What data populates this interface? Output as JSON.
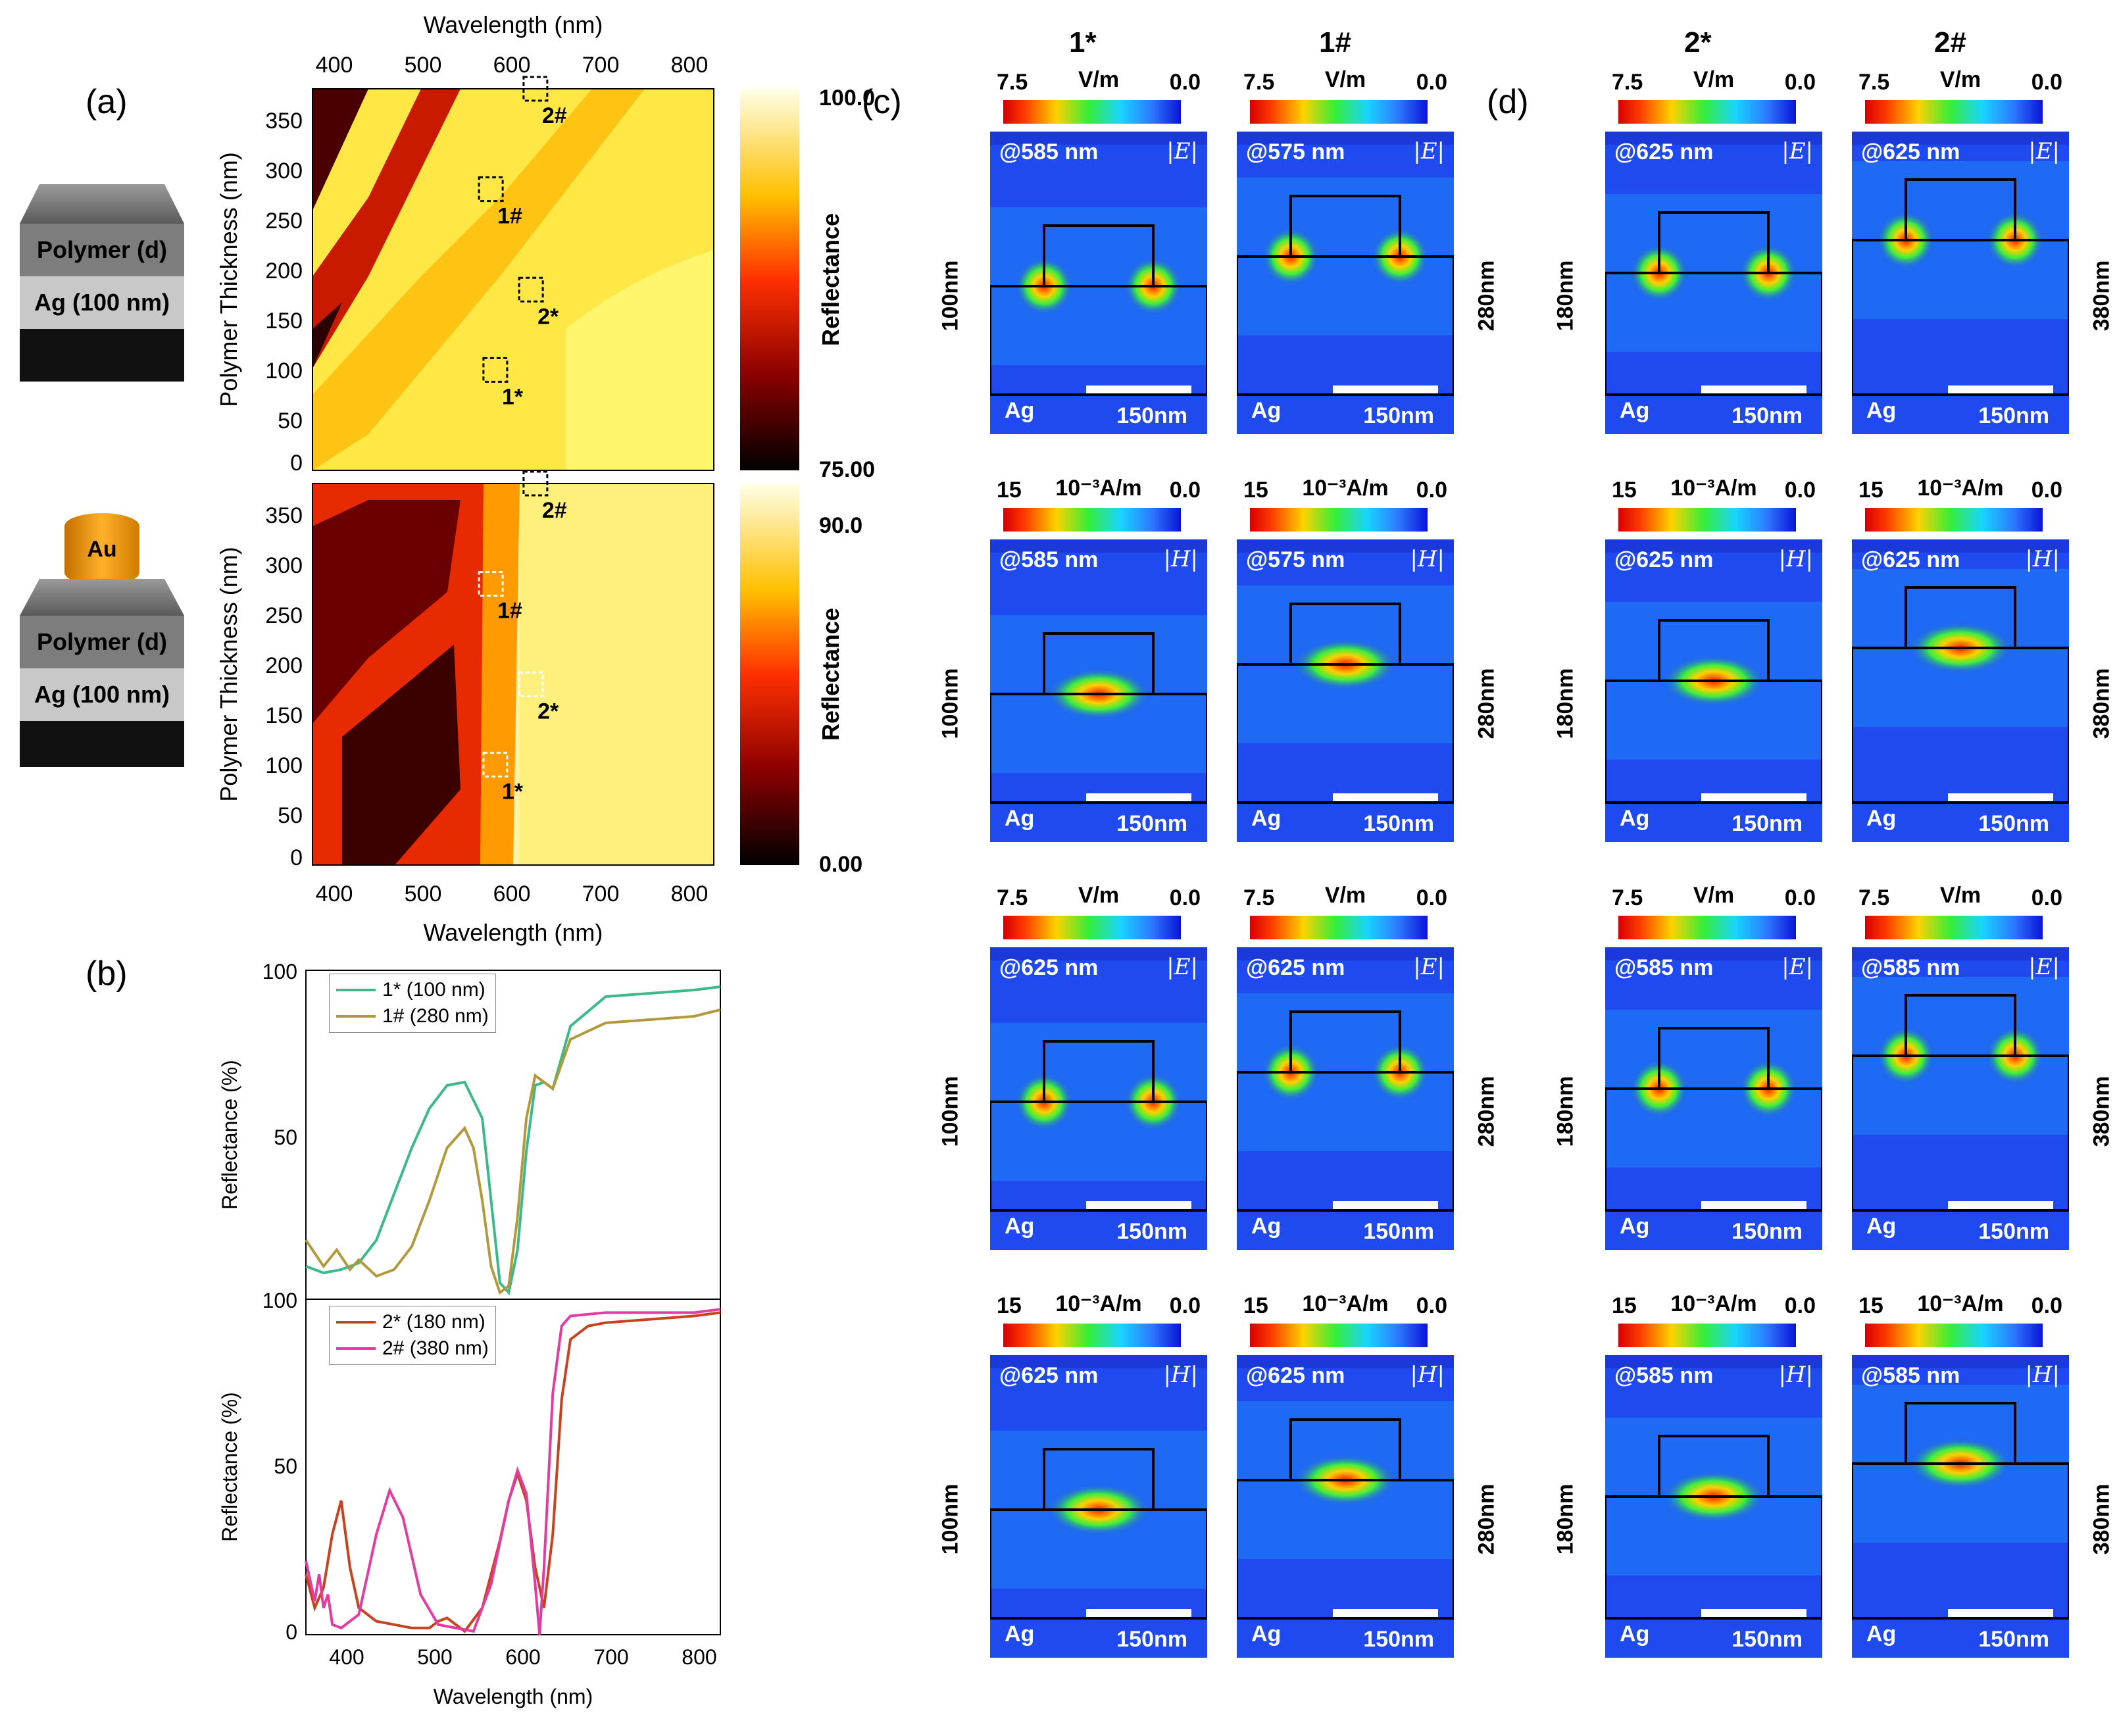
{
  "panel_labels": {
    "a": "(a)",
    "b": "(b)",
    "c": "(c)",
    "d": "(d)"
  },
  "schematics": {
    "top": {
      "layers": [
        "Polymer (d)",
        "Ag (100 nm)"
      ]
    },
    "bottom": {
      "particle": "Au",
      "layers": [
        "Polymer (d)",
        "Ag (100 nm)"
      ]
    }
  },
  "chart_data": [
    {
      "type": "heatmap",
      "title": "",
      "xlabel": "Wavelength (nm)",
      "ylabel": "Polymer Thickness (nm)",
      "x_ticks": [
        "400",
        "500",
        "600",
        "700",
        "800"
      ],
      "y_ticks": [
        "0",
        "50",
        "100",
        "150",
        "200",
        "250",
        "300",
        "350"
      ],
      "xlim": [
        380,
        830
      ],
      "ylim": [
        0,
        380
      ],
      "colorbar": {
        "label": "Reflectance",
        "max": "100.0",
        "min": "75.00"
      },
      "markers": [
        {
          "label": "2#",
          "wavelength": 630,
          "thickness": 380
        },
        {
          "label": "1#",
          "wavelength": 580,
          "thickness": 280
        },
        {
          "label": "2*",
          "wavelength": 625,
          "thickness": 180
        },
        {
          "label": "1*",
          "wavelength": 585,
          "thickness": 100
        }
      ]
    },
    {
      "type": "heatmap",
      "title": "",
      "xlabel": "Wavelength (nm)",
      "ylabel": "Polymer Thickness (nm)",
      "x_ticks": [
        "400",
        "500",
        "600",
        "700",
        "800"
      ],
      "y_ticks": [
        "0",
        "50",
        "100",
        "150",
        "200",
        "250",
        "300",
        "350"
      ],
      "xlim": [
        380,
        830
      ],
      "ylim": [
        0,
        380
      ],
      "colorbar": {
        "label": "Reflectance",
        "max": "90.0",
        "min": "0.00"
      },
      "markers": [
        {
          "label": "2#",
          "wavelength": 630,
          "thickness": 380
        },
        {
          "label": "1#",
          "wavelength": 580,
          "thickness": 280
        },
        {
          "label": "2*",
          "wavelength": 625,
          "thickness": 180
        },
        {
          "label": "1*",
          "wavelength": 585,
          "thickness": 100
        }
      ]
    },
    {
      "type": "line",
      "xlabel": "",
      "ylabel": "Reflectance (%)",
      "xlim": [
        360,
        830
      ],
      "ylim": [
        0,
        100
      ],
      "y_ticks": [
        "100",
        "50"
      ],
      "series": [
        {
          "name": "1* (100 nm)",
          "color": "#3cb98a",
          "x": [
            360,
            380,
            400,
            420,
            440,
            460,
            480,
            500,
            520,
            540,
            560,
            570,
            580,
            590,
            600,
            610,
            620,
            630,
            640,
            660,
            700,
            750,
            800,
            830
          ],
          "y": [
            10,
            8,
            9,
            11,
            18,
            32,
            46,
            58,
            65,
            66,
            55,
            30,
            5,
            2,
            15,
            45,
            65,
            66,
            64,
            83,
            92,
            93,
            94,
            95
          ]
        },
        {
          "name": "1# (280 nm)",
          "color": "#b29a3c",
          "x": [
            360,
            370,
            380,
            395,
            410,
            420,
            440,
            460,
            480,
            500,
            520,
            540,
            550,
            560,
            570,
            580,
            590,
            600,
            610,
            620,
            630,
            640,
            660,
            700,
            750,
            800,
            830
          ],
          "y": [
            18,
            14,
            10,
            15,
            9,
            12,
            7,
            9,
            16,
            30,
            46,
            52,
            46,
            30,
            10,
            2,
            4,
            25,
            55,
            68,
            66,
            64,
            79,
            84,
            85,
            86,
            88
          ]
        }
      ]
    },
    {
      "type": "line",
      "xlabel": "Wavelength (nm)",
      "ylabel": "Reflectance (%)",
      "xlim": [
        360,
        830
      ],
      "ylim": [
        0,
        100
      ],
      "x_ticks": [
        "400",
        "500",
        "600",
        "700",
        "800"
      ],
      "y_ticks": [
        "100",
        "50",
        "0"
      ],
      "series": [
        {
          "name": "2* (180 nm)",
          "color": "#c8421e",
          "x": [
            360,
            370,
            380,
            390,
            400,
            410,
            420,
            440,
            460,
            480,
            500,
            510,
            520,
            530,
            540,
            560,
            580,
            590,
            600,
            610,
            620,
            630,
            640,
            650,
            660,
            680,
            700,
            750,
            800,
            830
          ],
          "y": [
            18,
            8,
            14,
            30,
            40,
            20,
            8,
            4,
            3,
            2,
            2,
            4,
            5,
            3,
            1,
            8,
            28,
            40,
            48,
            40,
            20,
            8,
            30,
            70,
            88,
            92,
            93,
            94,
            95,
            96
          ]
        },
        {
          "name": "2# (380 nm)",
          "color": "#e33ca0",
          "x": [
            360,
            370,
            375,
            380,
            385,
            390,
            400,
            420,
            440,
            455,
            470,
            490,
            510,
            530,
            550,
            570,
            590,
            600,
            610,
            620,
            625,
            630,
            640,
            650,
            660,
            700,
            750,
            800,
            830
          ],
          "y": [
            22,
            10,
            18,
            8,
            12,
            3,
            2,
            6,
            30,
            43,
            35,
            12,
            3,
            2,
            1,
            15,
            40,
            49,
            42,
            15,
            0,
            20,
            72,
            92,
            95,
            96,
            96,
            96,
            97
          ]
        }
      ]
    }
  ],
  "field_maps": {
    "columns": [
      {
        "head": "1*",
        "side": "100nm"
      },
      {
        "head": "1#",
        "side": "280nm"
      },
      {
        "head": "2*",
        "side": "180nm"
      },
      {
        "head": "2#",
        "side": "380nm"
      }
    ],
    "rows": [
      {
        "type": "E",
        "unit": "V/m",
        "max": "7.5",
        "min": "0.0",
        "wl": [
          "@585 nm",
          "@575 nm",
          "@625 nm",
          "@625 nm"
        ]
      },
      {
        "type": "H",
        "unit": "10⁻³A/m",
        "max": "15",
        "min": "0.0",
        "wl": [
          "@585 nm",
          "@575 nm",
          "@625 nm",
          "@625 nm"
        ]
      },
      {
        "type": "E",
        "unit": "V/m",
        "max": "7.5",
        "min": "0.0",
        "wl": [
          "@625 nm",
          "@625 nm",
          "@585 nm",
          "@585 nm"
        ]
      },
      {
        "type": "H",
        "unit": "10⁻³A/m",
        "max": "15",
        "min": "0.0",
        "wl": [
          "@625 nm",
          "@625 nm",
          "@585 nm",
          "@585 nm"
        ]
      }
    ],
    "field_symbols": {
      "E": "|E|",
      "H": "|H|"
    },
    "substrate": "Ag",
    "scale_bar": "150nm"
  }
}
